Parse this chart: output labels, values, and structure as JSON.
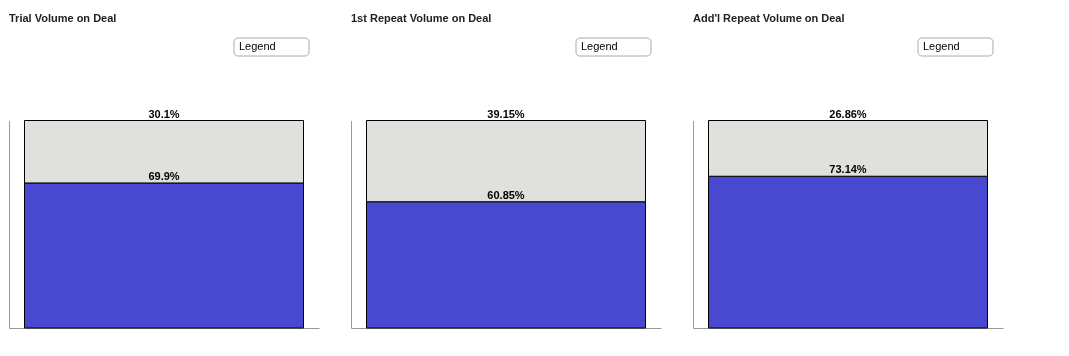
{
  "chart_data": [
    {
      "type": "bar",
      "title": "Trial Volume on Deal",
      "annotations": [
        "Legend"
      ],
      "categories": [
        null
      ],
      "stacked": true,
      "grid": false,
      "legend": false,
      "series": [
        {
          "color": "#4848d0",
          "values": [
            69.9
          ],
          "value_labels": [
            "69.9%"
          ]
        },
        {
          "color": "#e0e0dc",
          "values": [
            30.1
          ],
          "value_labels": [
            "30.1%"
          ]
        }
      ]
    },
    {
      "type": "bar",
      "title": "1st Repeat Volume on Deal",
      "annotations": [
        "Legend"
      ],
      "categories": [
        null
      ],
      "stacked": true,
      "grid": false,
      "legend": false,
      "series": [
        {
          "color": "#4848d0",
          "values": [
            60.85
          ],
          "value_labels": [
            "60.85%"
          ]
        },
        {
          "color": "#e0e0dc",
          "values": [
            39.15
          ],
          "value_labels": [
            "39.15%"
          ]
        }
      ]
    },
    {
      "type": "bar",
      "title": "Add'l Repeat Volume on Deal",
      "annotations": [
        "Legend"
      ],
      "categories": [
        null
      ],
      "stacked": true,
      "grid": false,
      "legend": false,
      "series": [
        {
          "color": "#4848d0",
          "values": [
            73.14
          ],
          "value_labels": [
            "73.14%"
          ]
        },
        {
          "color": "#e0e0dc",
          "values": [
            26.86
          ],
          "value_labels": [
            "26.86%"
          ]
        }
      ]
    }
  ]
}
